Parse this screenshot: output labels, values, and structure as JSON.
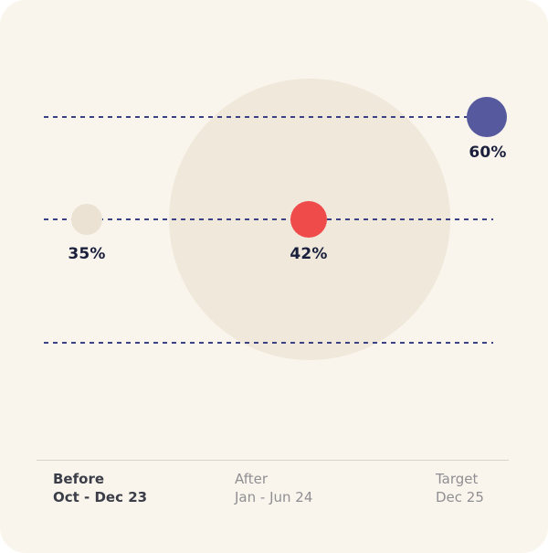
{
  "card": {
    "background": "#FAF5EC",
    "decor_circle_color": "#EFE8DB",
    "guide_line_color": "#3C4084",
    "divider_color": "#D9D4C9",
    "value_label_color": "#1A1F3C"
  },
  "chart_data": {
    "type": "scatter",
    "title": "",
    "xlabel": "",
    "ylabel": "",
    "guide_lines": 3,
    "legend": "none",
    "categories": [
      "Before",
      "After",
      "Target"
    ],
    "points": [
      {
        "label": "35%",
        "value": 35,
        "column": "Before",
        "row": 2,
        "color": "#EBE2D4"
      },
      {
        "label": "42%",
        "value": 42,
        "column": "After",
        "row": 2,
        "color": "#F04B4B"
      },
      {
        "label": "60%",
        "value": 60,
        "column": "Target",
        "row": 1,
        "color": "#57599E"
      }
    ],
    "x_axis": [
      {
        "label": "Before",
        "sublabel": "Oct - Dec 23",
        "emphasis": true
      },
      {
        "label": "After",
        "sublabel": "Jan - Jun 24",
        "emphasis": false
      },
      {
        "label": "Target",
        "sublabel": "Dec 25",
        "emphasis": false
      }
    ]
  }
}
